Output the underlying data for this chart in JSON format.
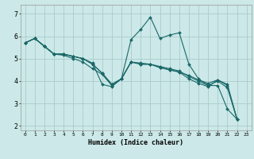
{
  "xlabel": "Humidex (Indice chaleur)",
  "bg_color": "#cce8e8",
  "grid_color": "#aacccc",
  "line_color": "#1a6868",
  "xlim": [
    -0.5,
    23.5
  ],
  "ylim": [
    1.8,
    7.4
  ],
  "xtick_vals": [
    0,
    1,
    2,
    3,
    4,
    5,
    6,
    7,
    8,
    9,
    10,
    11,
    12,
    13,
    14,
    15,
    16,
    17,
    18,
    19,
    20,
    21,
    22,
    23
  ],
  "ytick_vals": [
    2,
    3,
    4,
    5,
    6,
    7
  ],
  "series": [
    [
      5.7,
      5.9,
      5.55,
      5.2,
      5.2,
      5.1,
      5.0,
      4.8,
      3.85,
      3.75,
      4.1,
      5.85,
      6.3,
      6.85,
      5.9,
      6.05,
      6.15,
      4.75,
      4.1,
      3.8,
      3.8,
      2.75,
      2.3
    ],
    [
      5.7,
      5.9,
      5.55,
      5.2,
      5.2,
      5.1,
      5.0,
      4.75,
      4.35,
      3.85,
      4.1,
      4.85,
      4.75,
      4.75,
      4.6,
      4.5,
      4.4,
      4.1,
      3.9,
      3.75,
      4.05,
      3.8,
      2.3
    ],
    [
      5.7,
      5.9,
      5.55,
      5.2,
      5.2,
      5.1,
      5.0,
      4.75,
      4.35,
      3.85,
      4.1,
      4.85,
      4.75,
      4.75,
      4.6,
      4.5,
      4.4,
      4.25,
      4.05,
      3.9,
      4.05,
      3.85,
      2.3
    ],
    [
      5.7,
      5.9,
      5.55,
      5.2,
      5.15,
      5.0,
      4.85,
      4.55,
      4.3,
      3.8,
      4.1,
      4.85,
      4.8,
      4.75,
      4.65,
      4.55,
      4.45,
      4.2,
      4.0,
      3.8,
      4.0,
      3.7,
      2.3
    ]
  ]
}
